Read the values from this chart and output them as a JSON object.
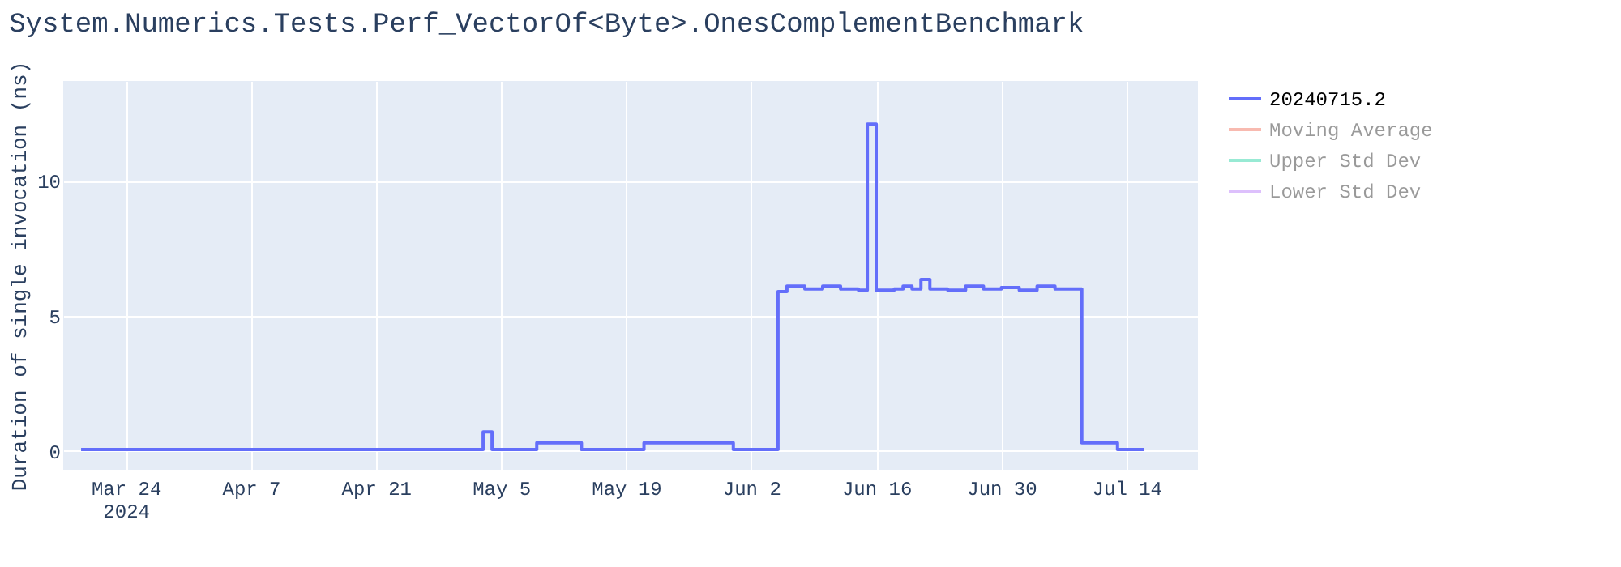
{
  "chart_data": {
    "type": "step",
    "title": "System.Numerics.Tests.Perf_VectorOf<Byte>.OnesComplementBenchmark",
    "ylabel": "Duration of single invocation (ns)",
    "x": [
      "2024-03-19",
      "2024-05-03",
      "2024-05-04",
      "2024-05-09",
      "2024-05-14",
      "2024-05-21",
      "2024-05-31",
      "2024-06-05",
      "2024-06-06",
      "2024-06-08",
      "2024-06-10",
      "2024-06-12",
      "2024-06-14",
      "2024-06-15",
      "2024-06-16",
      "2024-06-18",
      "2024-06-19",
      "2024-06-20",
      "2024-06-21",
      "2024-06-22",
      "2024-06-24",
      "2024-06-26",
      "2024-06-28",
      "2024-06-30",
      "2024-07-02",
      "2024-07-04",
      "2024-07-06",
      "2024-07-09",
      "2024-07-13",
      "2024-07-16"
    ],
    "series": [
      {
        "name": "20240715.2",
        "color": "#636efa",
        "values": [
          0.05,
          0.7,
          0.05,
          0.3,
          0.05,
          0.3,
          0.05,
          5.9,
          6.1,
          6.0,
          6.1,
          6.0,
          5.95,
          12.1,
          5.95,
          6.0,
          6.1,
          6.0,
          6.35,
          6.0,
          5.95,
          6.1,
          6.0,
          6.05,
          5.95,
          6.1,
          6.0,
          0.3,
          0.05,
          0.05
        ]
      },
      {
        "name": "Moving Average",
        "color": "#ef553b",
        "values": [
          null,
          null,
          null,
          null,
          null,
          null,
          null,
          null,
          null,
          null,
          null,
          null,
          null,
          null,
          null,
          null,
          null,
          null,
          null,
          null,
          null,
          null,
          null,
          null,
          null,
          null,
          null,
          null,
          null,
          null
        ]
      },
      {
        "name": "Upper Std Dev",
        "color": "#00cc96",
        "values": [
          null,
          null,
          null,
          null,
          null,
          null,
          null,
          null,
          null,
          null,
          null,
          null,
          null,
          null,
          null,
          null,
          null,
          null,
          null,
          null,
          null,
          null,
          null,
          null,
          null,
          null,
          null,
          null,
          null,
          null
        ]
      },
      {
        "name": "Lower Std Dev",
        "color": "#ab63fa",
        "values": [
          null,
          null,
          null,
          null,
          null,
          null,
          null,
          null,
          null,
          null,
          null,
          null,
          null,
          null,
          null,
          null,
          null,
          null,
          null,
          null,
          null,
          null,
          null,
          null,
          null,
          null,
          null,
          null,
          null,
          null
        ]
      }
    ],
    "xlim": [
      "2024-03-17",
      "2024-07-22"
    ],
    "xticks": [
      {
        "value": "2024-03-24",
        "label": "Mar 24\n2024"
      },
      {
        "value": "2024-04-07",
        "label": "Apr 7"
      },
      {
        "value": "2024-04-21",
        "label": "Apr 21"
      },
      {
        "value": "2024-05-05",
        "label": "May 5"
      },
      {
        "value": "2024-05-19",
        "label": "May 19"
      },
      {
        "value": "2024-06-02",
        "label": "Jun 2"
      },
      {
        "value": "2024-06-16",
        "label": "Jun 16"
      },
      {
        "value": "2024-06-30",
        "label": "Jun 30"
      },
      {
        "value": "2024-07-14",
        "label": "Jul 14"
      }
    ],
    "ylim": [
      -0.7,
      13.7
    ],
    "yticks": [
      0,
      5,
      10
    ],
    "grid": true,
    "legend": "right"
  }
}
